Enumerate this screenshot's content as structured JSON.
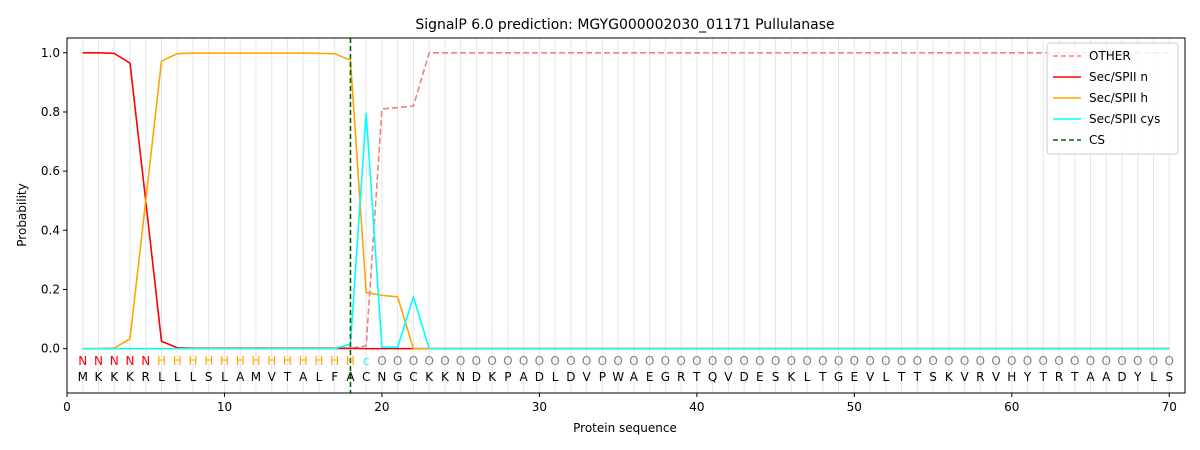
{
  "chart_data": {
    "type": "line",
    "title": "SignalP 6.0 prediction: MGYG000002030_01171 Pullulanase",
    "xlabel": "Protein sequence",
    "ylabel": "Probability",
    "xlim": [
      0,
      71
    ],
    "ylim": [
      -0.15,
      1.05
    ],
    "x_ticks": [
      0,
      10,
      20,
      30,
      40,
      50,
      60,
      70
    ],
    "y_ticks": [
      0.0,
      0.2,
      0.4,
      0.6,
      0.8,
      1.0
    ],
    "x_tick_labels": [
      "0",
      "10",
      "20",
      "30",
      "40",
      "50",
      "60",
      "70"
    ],
    "y_tick_labels": [
      "0.0",
      "0.2",
      "0.4",
      "0.6",
      "0.8",
      "1.0"
    ],
    "vertical_grid": true,
    "legend_position": "top-right",
    "sequence": [
      "M",
      "K",
      "K",
      "K",
      "R",
      "L",
      "L",
      "L",
      "S",
      "L",
      "A",
      "M",
      "V",
      "T",
      "A",
      "L",
      "F",
      "A",
      "C",
      "N",
      "G",
      "C",
      "K",
      "K",
      "N",
      "D",
      "K",
      "P",
      "A",
      "D",
      "L",
      "D",
      "V",
      "P",
      "W",
      "A",
      "E",
      "G",
      "R",
      "T",
      "Q",
      "V",
      "D",
      "E",
      "S",
      "K",
      "L",
      "T",
      "G",
      "E",
      "V",
      "L",
      "T",
      "T",
      "S",
      "K",
      "V",
      "R",
      "V",
      "H",
      "Y",
      "T",
      "R",
      "T",
      "A",
      "A",
      "D",
      "Y",
      "L",
      "S"
    ],
    "region_labels": [
      "N",
      "N",
      "N",
      "N",
      "N",
      "H",
      "H",
      "H",
      "H",
      "H",
      "H",
      "H",
      "H",
      "H",
      "H",
      "H",
      "H",
      "H",
      "c",
      "O",
      "O",
      "O",
      "O",
      "O",
      "O",
      "O",
      "O",
      "O",
      "O",
      "O",
      "O",
      "O",
      "O",
      "O",
      "O",
      "O",
      "O",
      "O",
      "O",
      "O",
      "O",
      "O",
      "O",
      "O",
      "O",
      "O",
      "O",
      "O",
      "O",
      "O",
      "O",
      "O",
      "O",
      "O",
      "O",
      "O",
      "O",
      "O",
      "O",
      "O",
      "O",
      "O",
      "O",
      "O",
      "O",
      "O",
      "O",
      "O",
      "O",
      "O"
    ],
    "region_colors": {
      "N": "#ff0000",
      "H": "#ffa500",
      "c": "#00ffff",
      "O": "#808080"
    },
    "series": [
      {
        "name": "OTHER",
        "color": "#f08080",
        "dash": true,
        "values": [
          0,
          0,
          0,
          0,
          0,
          0,
          0,
          0,
          0,
          0,
          0,
          0,
          0,
          0,
          0,
          0,
          0,
          0,
          0.01,
          0.81,
          0.815,
          0.82,
          1.0,
          1.0,
          1.0,
          1.0,
          1.0,
          1.0,
          1.0,
          1.0,
          1.0,
          1.0,
          1.0,
          1.0,
          1.0,
          1.0,
          1.0,
          1.0,
          1.0,
          1.0,
          1.0,
          1.0,
          1.0,
          1.0,
          1.0,
          1.0,
          1.0,
          1.0,
          1.0,
          1.0,
          1.0,
          1.0,
          1.0,
          1.0,
          1.0,
          1.0,
          1.0,
          1.0,
          1.0,
          1.0,
          1.0,
          1.0,
          1.0,
          1.0,
          1.0,
          1.0,
          1.0,
          1.0,
          1.0,
          1.0
        ]
      },
      {
        "name": "Sec/SPII n",
        "color": "#ff0000",
        "dash": false,
        "values": [
          1.0,
          1.0,
          0.998,
          0.965,
          0.5,
          0.025,
          0.003,
          0.001,
          0.001,
          0.001,
          0.001,
          0.001,
          0.001,
          0.001,
          0.001,
          0.001,
          0.001,
          0.001,
          0.0,
          0.0,
          0.0,
          0.0,
          0,
          0,
          0,
          0,
          0,
          0,
          0,
          0,
          0,
          0,
          0,
          0,
          0,
          0,
          0,
          0,
          0,
          0,
          0,
          0,
          0,
          0,
          0,
          0,
          0,
          0,
          0,
          0,
          0,
          0,
          0,
          0,
          0,
          0,
          0,
          0,
          0,
          0,
          0,
          0,
          0,
          0,
          0,
          0,
          0,
          0,
          0,
          0
        ]
      },
      {
        "name": "Sec/SPII h",
        "color": "#ffa500",
        "dash": false,
        "values": [
          0,
          0,
          0.002,
          0.033,
          0.5,
          0.972,
          0.997,
          0.999,
          0.999,
          0.999,
          0.999,
          0.999,
          0.999,
          0.999,
          0.999,
          0.998,
          0.997,
          0.975,
          0.19,
          0.18,
          0.175,
          0.0,
          0,
          0,
          0,
          0,
          0,
          0,
          0,
          0,
          0,
          0,
          0,
          0,
          0,
          0,
          0,
          0,
          0,
          0,
          0,
          0,
          0,
          0,
          0,
          0,
          0,
          0,
          0,
          0,
          0,
          0,
          0,
          0,
          0,
          0,
          0,
          0,
          0,
          0,
          0,
          0,
          0,
          0,
          0,
          0,
          0,
          0,
          0,
          0
        ]
      },
      {
        "name": "Sec/SPII cys",
        "color": "#00ffff",
        "dash": false,
        "values": [
          0,
          0,
          0,
          0,
          0,
          0,
          0,
          0,
          0,
          0,
          0,
          0,
          0,
          0,
          0,
          0,
          0,
          0.015,
          0.795,
          0.005,
          0.005,
          0.175,
          0.0,
          0,
          0,
          0,
          0,
          0,
          0,
          0,
          0,
          0,
          0,
          0,
          0,
          0,
          0,
          0,
          0,
          0,
          0,
          0,
          0,
          0,
          0,
          0,
          0,
          0,
          0,
          0,
          0,
          0,
          0,
          0,
          0,
          0,
          0,
          0,
          0,
          0,
          0,
          0,
          0,
          0,
          0,
          0,
          0,
          0,
          0,
          0
        ]
      }
    ],
    "cs_marker": {
      "name": "CS",
      "x": 18,
      "color": "#006400"
    }
  }
}
